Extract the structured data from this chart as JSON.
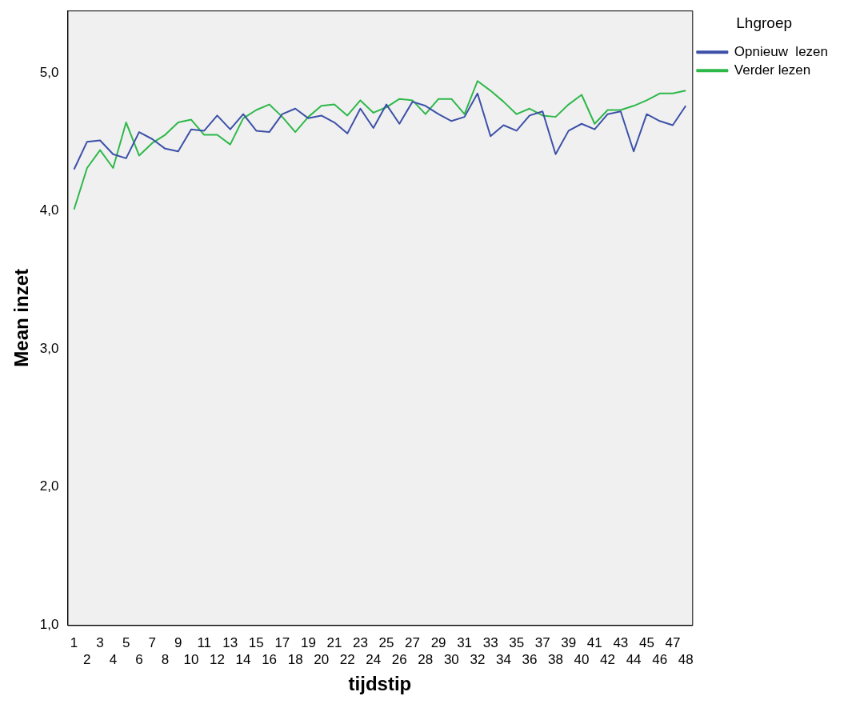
{
  "chart_data": {
    "type": "line",
    "xlabel": "tijdstip",
    "ylabel": "Mean inzet",
    "legend_title": "Lhgroep",
    "legend": "top right",
    "grid": false,
    "marker": "none",
    "line_style": "solid",
    "categories": [
      "1",
      "2",
      "3",
      "4",
      "5",
      "6",
      "7",
      "8",
      "9",
      "10",
      "11",
      "12",
      "13",
      "14",
      "15",
      "16",
      "17",
      "18",
      "19",
      "20",
      "21",
      "22",
      "23",
      "24",
      "25",
      "26",
      "27",
      "28",
      "29",
      "30",
      "31",
      "32",
      "33",
      "34",
      "35",
      "36",
      "37",
      "38",
      "39",
      "40",
      "41",
      "42",
      "43",
      "44",
      "45",
      "46",
      "47",
      "48"
    ],
    "ylim": [
      1,
      5.45
    ],
    "yticks": [
      {
        "value": 1,
        "label": "1,0"
      },
      {
        "value": 2,
        "label": "2,0"
      },
      {
        "value": 3,
        "label": "3,0"
      },
      {
        "value": 4,
        "label": "4,0"
      },
      {
        "value": 5,
        "label": "5,0"
      }
    ],
    "series": [
      {
        "name": "Opnieuw  lezen",
        "color": "#3c50a8",
        "values": [
          4.3,
          4.5,
          4.51,
          4.41,
          4.38,
          4.57,
          4.52,
          4.45,
          4.43,
          4.59,
          4.58,
          4.69,
          4.59,
          4.7,
          4.58,
          4.57,
          4.7,
          4.74,
          4.67,
          4.69,
          4.64,
          4.56,
          4.74,
          4.6,
          4.77,
          4.63,
          4.79,
          4.76,
          4.7,
          4.65,
          4.68,
          4.85,
          4.54,
          4.62,
          4.58,
          4.69,
          4.72,
          4.41,
          4.58,
          4.63,
          4.59,
          4.7,
          4.72,
          4.43,
          4.7,
          4.65,
          4.62,
          4.76
        ]
      },
      {
        "name": "Verder lezen",
        "color": "#2db84a",
        "values": [
          4.01,
          4.31,
          4.44,
          4.31,
          4.64,
          4.4,
          4.49,
          4.55,
          4.64,
          4.66,
          4.55,
          4.55,
          4.48,
          4.67,
          4.73,
          4.77,
          4.68,
          4.57,
          4.68,
          4.76,
          4.77,
          4.69,
          4.8,
          4.71,
          4.75,
          4.81,
          4.8,
          4.7,
          4.81,
          4.81,
          4.7,
          4.94,
          4.87,
          4.79,
          4.7,
          4.74,
          4.69,
          4.68,
          4.77,
          4.84,
          4.63,
          4.73,
          4.73,
          4.76,
          4.8,
          4.85,
          4.85,
          4.87
        ]
      }
    ]
  }
}
